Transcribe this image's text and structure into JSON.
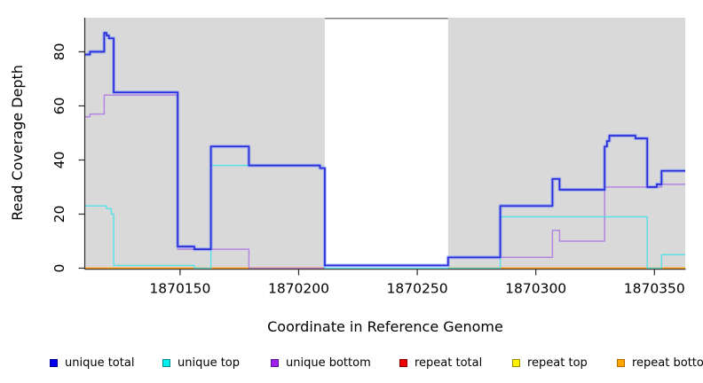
{
  "chart_data": {
    "type": "line-step",
    "title": "",
    "xlabel": "Coordinate in Reference Genome",
    "ylabel": "Read Coverage Depth",
    "x_domain": [
      1870110,
      1870363
    ],
    "y_domain": [
      0,
      92.6
    ],
    "x_ticks": [
      1870150,
      1870200,
      1870250,
      1870300,
      1870350
    ],
    "y_ticks": [
      0,
      20,
      40,
      60,
      80
    ],
    "grid": false,
    "panel_bg": "#d9d9d9",
    "mask_region": {
      "from": 1870211,
      "to": 1870263,
      "fill": "#ffffff",
      "top_border": "#808080"
    },
    "series": [
      {
        "name": "repeat total",
        "color": "#dd2a2a",
        "width": 1.3,
        "segments": [
          [
            [
              1870110,
              0
            ],
            [
              1870211,
              0
            ]
          ],
          [
            [
              1870263,
              0
            ],
            [
              1870363,
              0
            ]
          ]
        ]
      },
      {
        "name": "repeat top",
        "color": "#f0e130",
        "width": 1.1,
        "segments": [
          [
            [
              1870110,
              0
            ],
            [
              1870211,
              0
            ]
          ],
          [
            [
              1870263,
              0
            ],
            [
              1870363,
              0
            ]
          ]
        ]
      },
      {
        "name": "repeat bottom",
        "color": "#ff9d1f",
        "width": 2,
        "segments": [
          [
            [
              1870110,
              0
            ],
            [
              1870211,
              0
            ]
          ],
          [
            [
              1870263,
              0
            ],
            [
              1870363,
              0
            ]
          ]
        ]
      },
      {
        "name": "unique bottom",
        "color": "rgba(173,118,226,0.85)",
        "width": 1.5,
        "segments": [
          [
            [
              1870110,
              56
            ],
            [
              1870112,
              57
            ],
            [
              1870118,
              64
            ],
            [
              1870149,
              7
            ],
            [
              1870179,
              0
            ],
            [
              1870211,
              1
            ],
            [
              1870263,
              4
            ],
            [
              1870307,
              14
            ],
            [
              1870310,
              10
            ],
            [
              1870329,
              30
            ],
            [
              1870347,
              30
            ],
            [
              1870353,
              31
            ],
            [
              1870363,
              31
            ]
          ]
        ]
      },
      {
        "name": "unique top",
        "color": "rgba(72,226,231,0.85)",
        "width": 1.5,
        "segments": [
          [
            [
              1870110,
              23
            ],
            [
              1870119,
              22
            ],
            [
              1870121,
              20
            ],
            [
              1870122,
              1
            ],
            [
              1870156,
              0
            ],
            [
              1870163,
              38
            ],
            [
              1870209,
              37
            ],
            [
              1870211,
              0
            ],
            [
              1870285,
              19
            ],
            [
              1870347,
              0
            ],
            [
              1870353,
              5
            ],
            [
              1870363,
              5
            ]
          ]
        ]
      },
      {
        "name": "unique total",
        "color": "#2b2bd8",
        "width": 1.7,
        "halo": "rgba(110,140,250,0.55)",
        "halo_width": 4,
        "segments": [
          [
            [
              1870110,
              79
            ],
            [
              1870112,
              80
            ],
            [
              1870118,
              87
            ],
            [
              1870119,
              86
            ],
            [
              1870120,
              85
            ],
            [
              1870122,
              65
            ],
            [
              1870149,
              8
            ],
            [
              1870156,
              7
            ],
            [
              1870163,
              45
            ],
            [
              1870179,
              38
            ],
            [
              1870209,
              37
            ],
            [
              1870211,
              1
            ],
            [
              1870263,
              4
            ],
            [
              1870285,
              23
            ],
            [
              1870307,
              33
            ],
            [
              1870310,
              29
            ],
            [
              1870329,
              45
            ],
            [
              1870330,
              47
            ],
            [
              1870331,
              49
            ],
            [
              1870342,
              48
            ],
            [
              1870347,
              30
            ],
            [
              1870351,
              31
            ],
            [
              1870353,
              36
            ],
            [
              1870363,
              36
            ]
          ]
        ]
      }
    ],
    "legend": [
      {
        "label": "unique total",
        "fill": "#0000ee",
        "border": "#00008b"
      },
      {
        "label": "unique top",
        "fill": "#00eeee",
        "border": "#008b8b"
      },
      {
        "label": "unique bottom",
        "fill": "#a020f0",
        "border": "#551a8b"
      },
      {
        "label": "repeat total",
        "fill": "#ee0000",
        "border": "#8b0000"
      },
      {
        "label": "repeat top",
        "fill": "#fff200",
        "border": "#9b8b00"
      },
      {
        "label": "repeat bottom",
        "fill": "#ffa500",
        "border": "#b36b00"
      }
    ],
    "legend_position": "bottom"
  }
}
